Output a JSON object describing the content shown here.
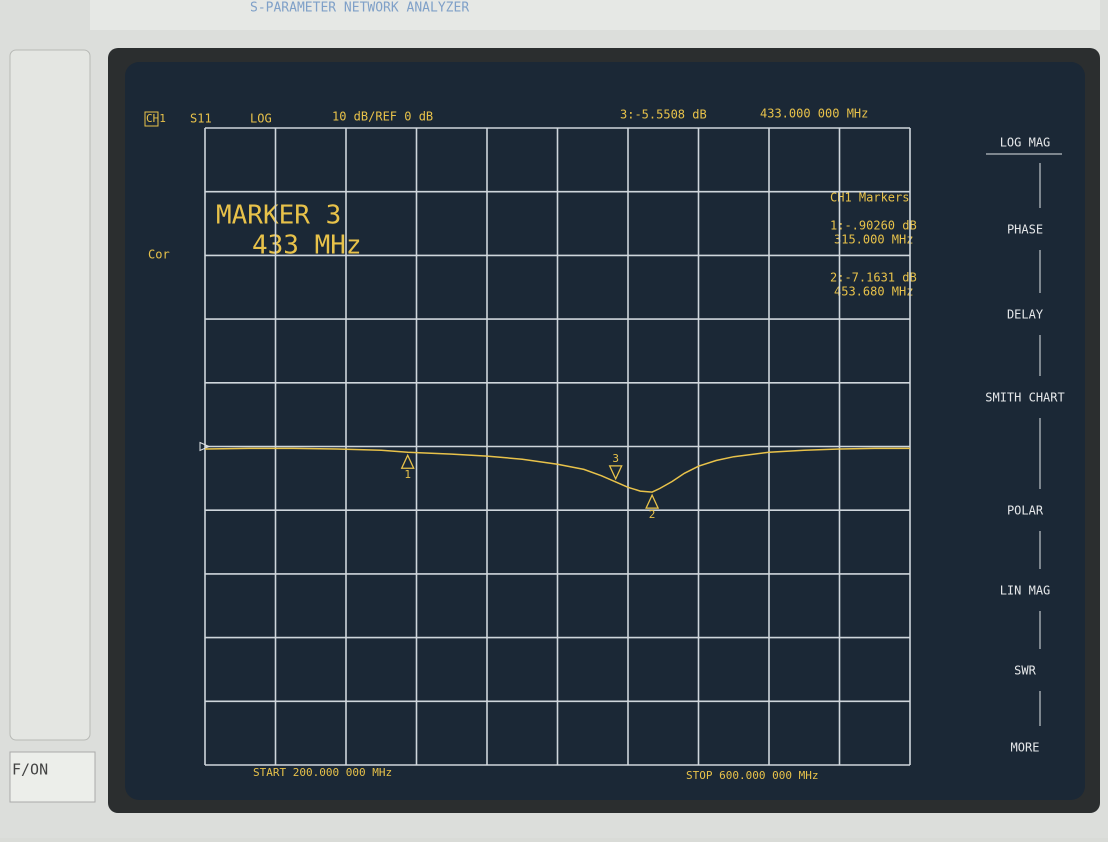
{
  "instrument": {
    "model_label": "S-PARAMETER NETWORK ANALYZER",
    "side_button": "F/ON"
  },
  "screen": {
    "channel": "CH1",
    "parameter": "S11",
    "format": "LOG",
    "scale": "10 dB/REF 0 dB",
    "active_marker_value": "3:-5.5508 dB",
    "active_marker_freq": "433.000 000 MHz",
    "cor": "Cor",
    "marker_title": "MARKER 3",
    "marker_freq": "433 MHz",
    "markers_title": "CH1 Markers",
    "marker_readouts": [
      {
        "value": "1:-.90260 dB",
        "freq": "315.000 MHz"
      },
      {
        "value": "2:-7.1631 dB",
        "freq": "453.680 MHz"
      }
    ],
    "start": "START 200.000 000 MHz",
    "stop": "STOP 600.000 000 MHz"
  },
  "softkeys": [
    "LOG MAG",
    "PHASE",
    "DELAY",
    "SMITH CHART",
    "POLAR",
    "LIN MAG",
    "SWR",
    "MORE"
  ],
  "chart_data": {
    "type": "line",
    "color": "#e8c24a",
    "x": [
      200,
      225,
      250,
      275,
      300,
      315,
      340,
      360,
      380,
      400,
      415,
      425,
      433,
      440,
      447,
      453.68,
      458,
      465,
      472,
      480,
      490,
      500,
      520,
      540,
      560,
      580,
      600
    ],
    "values": [
      -0.4,
      -0.3,
      -0.3,
      -0.4,
      -0.6,
      -0.9,
      -1.2,
      -1.5,
      -2,
      -2.8,
      -3.6,
      -4.6,
      -5.55,
      -6.4,
      -7,
      -7.16,
      -6.6,
      -5.5,
      -4.2,
      -3.1,
      -2.2,
      -1.6,
      -0.9,
      -0.6,
      -0.4,
      -0.3,
      -0.3
    ],
    "markers": [
      {
        "label": "1",
        "x": 315,
        "value": -0.9026
      },
      {
        "label": "2",
        "x": 453.68,
        "value": -7.1631
      },
      {
        "label": "3",
        "x": 433,
        "value": -5.5508
      }
    ],
    "xlim": [
      200,
      600
    ],
    "ylim": [
      -50,
      50
    ],
    "xticks": [
      200,
      240,
      280,
      320,
      360,
      400,
      440,
      480,
      520,
      560,
      600
    ],
    "yticks": [
      -50,
      -40,
      -30,
      -20,
      -10,
      0,
      10,
      20,
      30,
      40,
      50
    ],
    "grid": true
  }
}
